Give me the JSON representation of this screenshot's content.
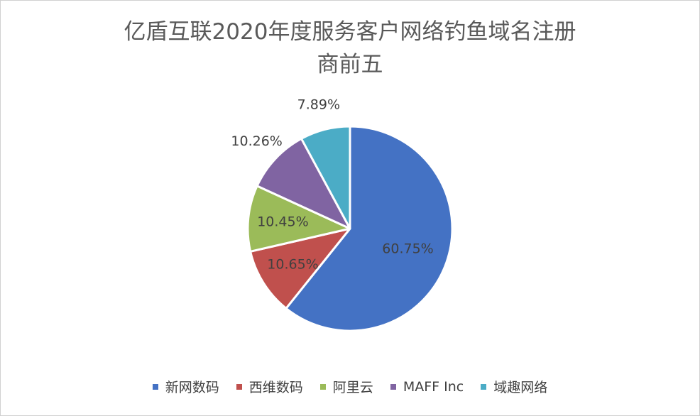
{
  "chart_data": {
    "type": "pie",
    "title_lines": [
      "亿盾互联2020年度服务客户网络钓鱼域名注册",
      "商前五"
    ],
    "slices": [
      {
        "name": "新网数码",
        "value": 60.75,
        "label": "60.75%",
        "color": "#4472c4"
      },
      {
        "name": "西维数码",
        "value": 10.65,
        "label": "10.65%",
        "color": "#c0504d"
      },
      {
        "name": "阿里云",
        "value": 10.45,
        "label": "10.45%",
        "color": "#9bbb59"
      },
      {
        "name": "MAFF Inc",
        "value": 10.26,
        "label": "10.26%",
        "color": "#8064a2"
      },
      {
        "name": "域趣网络",
        "value": 7.89,
        "label": "7.89%",
        "color": "#4bacc6"
      }
    ],
    "legend_position": "bottom"
  }
}
